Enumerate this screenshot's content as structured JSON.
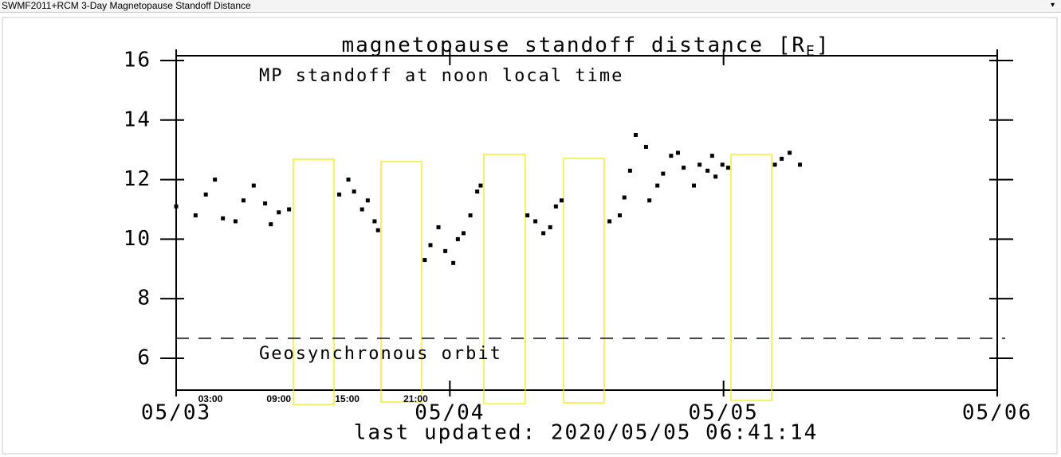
{
  "header": {
    "title": "SWMF2011+RCM 3-Day Magnetopause Standoff Distance"
  },
  "chart_data": {
    "type": "scatter",
    "title_parts": [
      "magnetopause standoff distance [R",
      "E",
      "]"
    ],
    "annotation": "MP standoff at noon local time",
    "footnote": "last updated: 2020/05/05  06:41:14",
    "color": "#000000",
    "xlim": [
      0,
      72
    ],
    "xticks": [
      {
        "value": 0,
        "label": "05/03"
      },
      {
        "value": 24,
        "label": "05/04"
      },
      {
        "value": 48,
        "label": "05/05"
      },
      {
        "value": 72,
        "label": "05/06"
      }
    ],
    "hour_labels": [
      {
        "value": 3,
        "label": "03:00"
      },
      {
        "value": 9,
        "label": "09:00"
      },
      {
        "value": 15,
        "label": "15:00"
      },
      {
        "value": 21,
        "label": "21:00"
      }
    ],
    "ylim": [
      4.93,
      16.16
    ],
    "yticks": [
      6,
      8,
      10,
      12,
      14,
      16
    ],
    "reference_line": {
      "value": 6.67,
      "label": "Geosynchronous orbit"
    },
    "x": [
      0.0,
      1.7,
      2.6,
      3.4,
      4.1,
      5.2,
      5.9,
      6.8,
      7.8,
      8.3,
      9.0,
      9.9,
      14.3,
      15.1,
      15.6,
      16.3,
      16.8,
      17.4,
      17.7,
      21.8,
      22.3,
      23.0,
      23.6,
      24.3,
      24.7,
      25.2,
      25.8,
      26.4,
      26.7,
      30.8,
      31.5,
      32.2,
      32.8,
      33.3,
      33.8,
      38.0,
      38.9,
      39.3,
      39.8,
      40.3,
      41.2,
      41.5,
      42.2,
      42.7,
      43.4,
      44.0,
      44.5,
      45.4,
      45.9,
      46.6,
      47.0,
      47.3,
      47.9,
      48.4,
      52.5,
      53.1,
      53.8,
      54.7
    ],
    "values": [
      11.1,
      10.8,
      11.5,
      12.0,
      10.7,
      10.6,
      11.3,
      11.8,
      11.2,
      10.5,
      10.9,
      11.0,
      11.5,
      12.0,
      11.6,
      11.0,
      11.3,
      10.6,
      10.3,
      9.3,
      9.8,
      10.4,
      9.6,
      9.2,
      10.0,
      10.2,
      10.8,
      11.6,
      11.8,
      10.8,
      10.6,
      10.2,
      10.4,
      11.1,
      11.3,
      10.6,
      10.8,
      11.4,
      12.3,
      13.5,
      13.1,
      11.3,
      11.8,
      12.2,
      12.8,
      12.9,
      12.4,
      11.8,
      12.5,
      12.3,
      12.8,
      12.1,
      12.5,
      12.4,
      12.5,
      12.7,
      12.9,
      12.5
    ]
  }
}
